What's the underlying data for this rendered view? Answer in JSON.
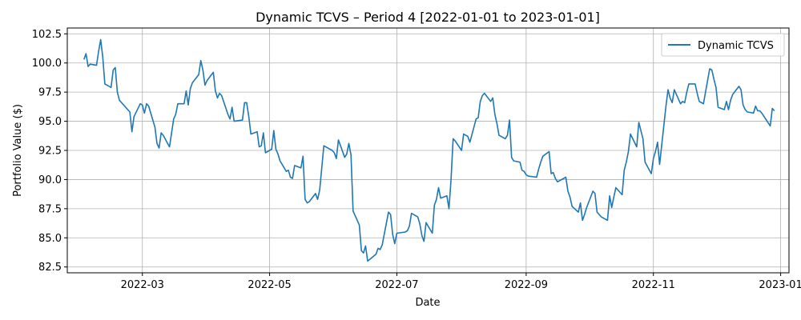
{
  "chart_data": {
    "type": "line",
    "title": "Dynamic TCVS – Period 4 [2022-01-01 to 2023-01-01]",
    "xlabel": "Date",
    "ylabel": "Portfolio Value ($)",
    "xlim": [
      "2022-01-24",
      "2023-01-05"
    ],
    "ylim": [
      82.0,
      103.0
    ],
    "x_ticks": [
      "2022-03-01",
      "2022-05-01",
      "2022-07-01",
      "2022-09-01",
      "2022-11-01",
      "2023-01-01"
    ],
    "x_tick_labels": [
      "2022-03",
      "2022-05",
      "2022-07",
      "2022-09",
      "2022-11",
      "2023-01"
    ],
    "y_ticks": [
      82.5,
      85.0,
      87.5,
      90.0,
      92.5,
      95.0,
      97.5,
      100.0,
      102.5
    ],
    "y_tick_labels": [
      "82.5",
      "85.0",
      "87.5",
      "90.0",
      "92.5",
      "95.0",
      "97.5",
      "100.0",
      "102.5"
    ],
    "grid": true,
    "legend_position": "top-right",
    "colors": {
      "series": "#1f77b4",
      "grid": "#b0b0b0"
    },
    "series": [
      {
        "name": "Dynamic TCVS",
        "color": "#1f77b4",
        "x": [
          "2022-02-01",
          "2022-02-02",
          "2022-02-03",
          "2022-02-04",
          "2022-02-07",
          "2022-02-08",
          "2022-02-09",
          "2022-02-10",
          "2022-02-11",
          "2022-02-14",
          "2022-02-15",
          "2022-02-16",
          "2022-02-17",
          "2022-02-18",
          "2022-02-22",
          "2022-02-23",
          "2022-02-24",
          "2022-02-25",
          "2022-02-28",
          "2022-03-01",
          "2022-03-02",
          "2022-03-03",
          "2022-03-04",
          "2022-03-07",
          "2022-03-08",
          "2022-03-09",
          "2022-03-10",
          "2022-03-11",
          "2022-03-14",
          "2022-03-15",
          "2022-03-16",
          "2022-03-17",
          "2022-03-18",
          "2022-03-21",
          "2022-03-22",
          "2022-03-23",
          "2022-03-24",
          "2022-03-25",
          "2022-03-28",
          "2022-03-29",
          "2022-03-30",
          "2022-03-31",
          "2022-04-01",
          "2022-04-04",
          "2022-04-05",
          "2022-04-06",
          "2022-04-07",
          "2022-04-08",
          "2022-04-11",
          "2022-04-12",
          "2022-04-13",
          "2022-04-14",
          "2022-04-18",
          "2022-04-19",
          "2022-04-20",
          "2022-04-21",
          "2022-04-22",
          "2022-04-25",
          "2022-04-26",
          "2022-04-27",
          "2022-04-28",
          "2022-04-29",
          "2022-05-02",
          "2022-05-03",
          "2022-05-04",
          "2022-05-05",
          "2022-05-06",
          "2022-05-09",
          "2022-05-10",
          "2022-05-11",
          "2022-05-12",
          "2022-05-13",
          "2022-05-16",
          "2022-05-17",
          "2022-05-18",
          "2022-05-19",
          "2022-05-20",
          "2022-05-23",
          "2022-05-24",
          "2022-05-25",
          "2022-05-26",
          "2022-05-27",
          "2022-05-31",
          "2022-06-01",
          "2022-06-02",
          "2022-06-03",
          "2022-06-06",
          "2022-06-07",
          "2022-06-08",
          "2022-06-09",
          "2022-06-10",
          "2022-06-13",
          "2022-06-14",
          "2022-06-15",
          "2022-06-16",
          "2022-06-17",
          "2022-06-21",
          "2022-06-22",
          "2022-06-23",
          "2022-06-24",
          "2022-06-27",
          "2022-06-28",
          "2022-06-29",
          "2022-06-30",
          "2022-07-01",
          "2022-07-05",
          "2022-07-06",
          "2022-07-07",
          "2022-07-08",
          "2022-07-11",
          "2022-07-12",
          "2022-07-13",
          "2022-07-14",
          "2022-07-15",
          "2022-07-18",
          "2022-07-19",
          "2022-07-20",
          "2022-07-21",
          "2022-07-22",
          "2022-07-25",
          "2022-07-26",
          "2022-07-27",
          "2022-07-28",
          "2022-07-29",
          "2022-08-01",
          "2022-08-02",
          "2022-08-03",
          "2022-08-04",
          "2022-08-05",
          "2022-08-08",
          "2022-08-09",
          "2022-08-10",
          "2022-08-11",
          "2022-08-12",
          "2022-08-15",
          "2022-08-16",
          "2022-08-17",
          "2022-08-18",
          "2022-08-19",
          "2022-08-22",
          "2022-08-23",
          "2022-08-24",
          "2022-08-25",
          "2022-08-26",
          "2022-08-29",
          "2022-08-30",
          "2022-08-31",
          "2022-09-01",
          "2022-09-02",
          "2022-09-06",
          "2022-09-07",
          "2022-09-08",
          "2022-09-09",
          "2022-09-12",
          "2022-09-13",
          "2022-09-14",
          "2022-09-15",
          "2022-09-16",
          "2022-09-19",
          "2022-09-20",
          "2022-09-21",
          "2022-09-22",
          "2022-09-23",
          "2022-09-26",
          "2022-09-27",
          "2022-09-28",
          "2022-09-29",
          "2022-09-30",
          "2022-10-03",
          "2022-10-04",
          "2022-10-05",
          "2022-10-06",
          "2022-10-07",
          "2022-10-10",
          "2022-10-11",
          "2022-10-12",
          "2022-10-13",
          "2022-10-14",
          "2022-10-17",
          "2022-10-18",
          "2022-10-19",
          "2022-10-20",
          "2022-10-21",
          "2022-10-24",
          "2022-10-25",
          "2022-10-26",
          "2022-10-27",
          "2022-10-28",
          "2022-10-31",
          "2022-11-01",
          "2022-11-02",
          "2022-11-03",
          "2022-11-04",
          "2022-11-07",
          "2022-11-08",
          "2022-11-09",
          "2022-11-10",
          "2022-11-11",
          "2022-11-14",
          "2022-11-15",
          "2022-11-16",
          "2022-11-17",
          "2022-11-18",
          "2022-11-21",
          "2022-11-22",
          "2022-11-23",
          "2022-11-25",
          "2022-11-28",
          "2022-11-29",
          "2022-11-30",
          "2022-12-01",
          "2022-12-02",
          "2022-12-05",
          "2022-12-06",
          "2022-12-07",
          "2022-12-08",
          "2022-12-09",
          "2022-12-12",
          "2022-12-13",
          "2022-12-14",
          "2022-12-15",
          "2022-12-16",
          "2022-12-19",
          "2022-12-20",
          "2022-12-21",
          "2022-12-22",
          "2022-12-23",
          "2022-12-27",
          "2022-12-28",
          "2022-12-29"
        ],
        "values": [
          100.3,
          100.8,
          99.7,
          99.9,
          99.8,
          101.0,
          102.0,
          100.5,
          98.2,
          97.9,
          99.4,
          99.6,
          97.5,
          96.8,
          96.0,
          95.8,
          94.1,
          95.4,
          96.5,
          96.4,
          95.7,
          96.5,
          96.3,
          94.5,
          93.1,
          92.7,
          94.0,
          93.8,
          92.8,
          94.0,
          95.2,
          95.6,
          96.5,
          96.5,
          97.6,
          96.4,
          97.8,
          98.3,
          99.0,
          100.2,
          99.4,
          98.1,
          98.5,
          99.2,
          97.6,
          97.0,
          97.4,
          97.2,
          95.6,
          95.2,
          96.2,
          95.0,
          95.1,
          96.6,
          96.6,
          95.4,
          93.9,
          94.1,
          92.8,
          92.9,
          94.0,
          92.3,
          92.6,
          94.2,
          92.6,
          92.2,
          91.6,
          90.7,
          90.8,
          90.2,
          90.1,
          91.2,
          91.0,
          92.0,
          88.3,
          88.0,
          88.1,
          88.8,
          88.3,
          89.1,
          91.0,
          92.9,
          92.5,
          92.3,
          91.8,
          93.4,
          91.9,
          92.2,
          93.1,
          92.1,
          87.3,
          86.1,
          83.9,
          83.7,
          84.3,
          83.0,
          83.6,
          84.1,
          84.0,
          84.4,
          87.2,
          87.0,
          85.3,
          84.5,
          85.4,
          85.5,
          85.6,
          86.0,
          87.1,
          86.8,
          86.2,
          85.2,
          84.7,
          86.3,
          85.4,
          87.8,
          88.3,
          89.3,
          88.4,
          88.6,
          87.5,
          90.0,
          93.5,
          93.3,
          92.5,
          93.9,
          93.8,
          93.7,
          93.2,
          95.2,
          95.3,
          96.7,
          97.2,
          97.4,
          96.7,
          97.0,
          95.6,
          94.8,
          93.8,
          93.5,
          93.8,
          95.1,
          91.9,
          91.6,
          91.5,
          90.8,
          90.7,
          90.4,
          90.3,
          90.2,
          90.9,
          91.5,
          92.0,
          92.4,
          90.5,
          90.6,
          90.1,
          89.8,
          90.1,
          90.2,
          89.0,
          88.5,
          87.7,
          87.2,
          88.0,
          86.5,
          87.0,
          87.6,
          89.0,
          88.8,
          87.2,
          87.0,
          86.8,
          86.5,
          88.6,
          87.6,
          88.5,
          89.3,
          88.7,
          90.8,
          91.5,
          92.4,
          93.9,
          92.8,
          94.9,
          94.2,
          93.5,
          91.5,
          90.5,
          91.8,
          92.4,
          93.2,
          91.3,
          96.3,
          97.7,
          97.0,
          96.6,
          97.7,
          96.5,
          96.7,
          96.6,
          97.5,
          98.2,
          98.2,
          97.4,
          96.7,
          96.5,
          99.5,
          99.4,
          98.6,
          97.9,
          96.2,
          96.0,
          96.7,
          96.0,
          96.8,
          97.3,
          98.0,
          97.7,
          96.4,
          96.0,
          95.8,
          95.7,
          96.3,
          95.9,
          95.9,
          95.7,
          94.6,
          96.1,
          95.9
        ]
      }
    ]
  }
}
